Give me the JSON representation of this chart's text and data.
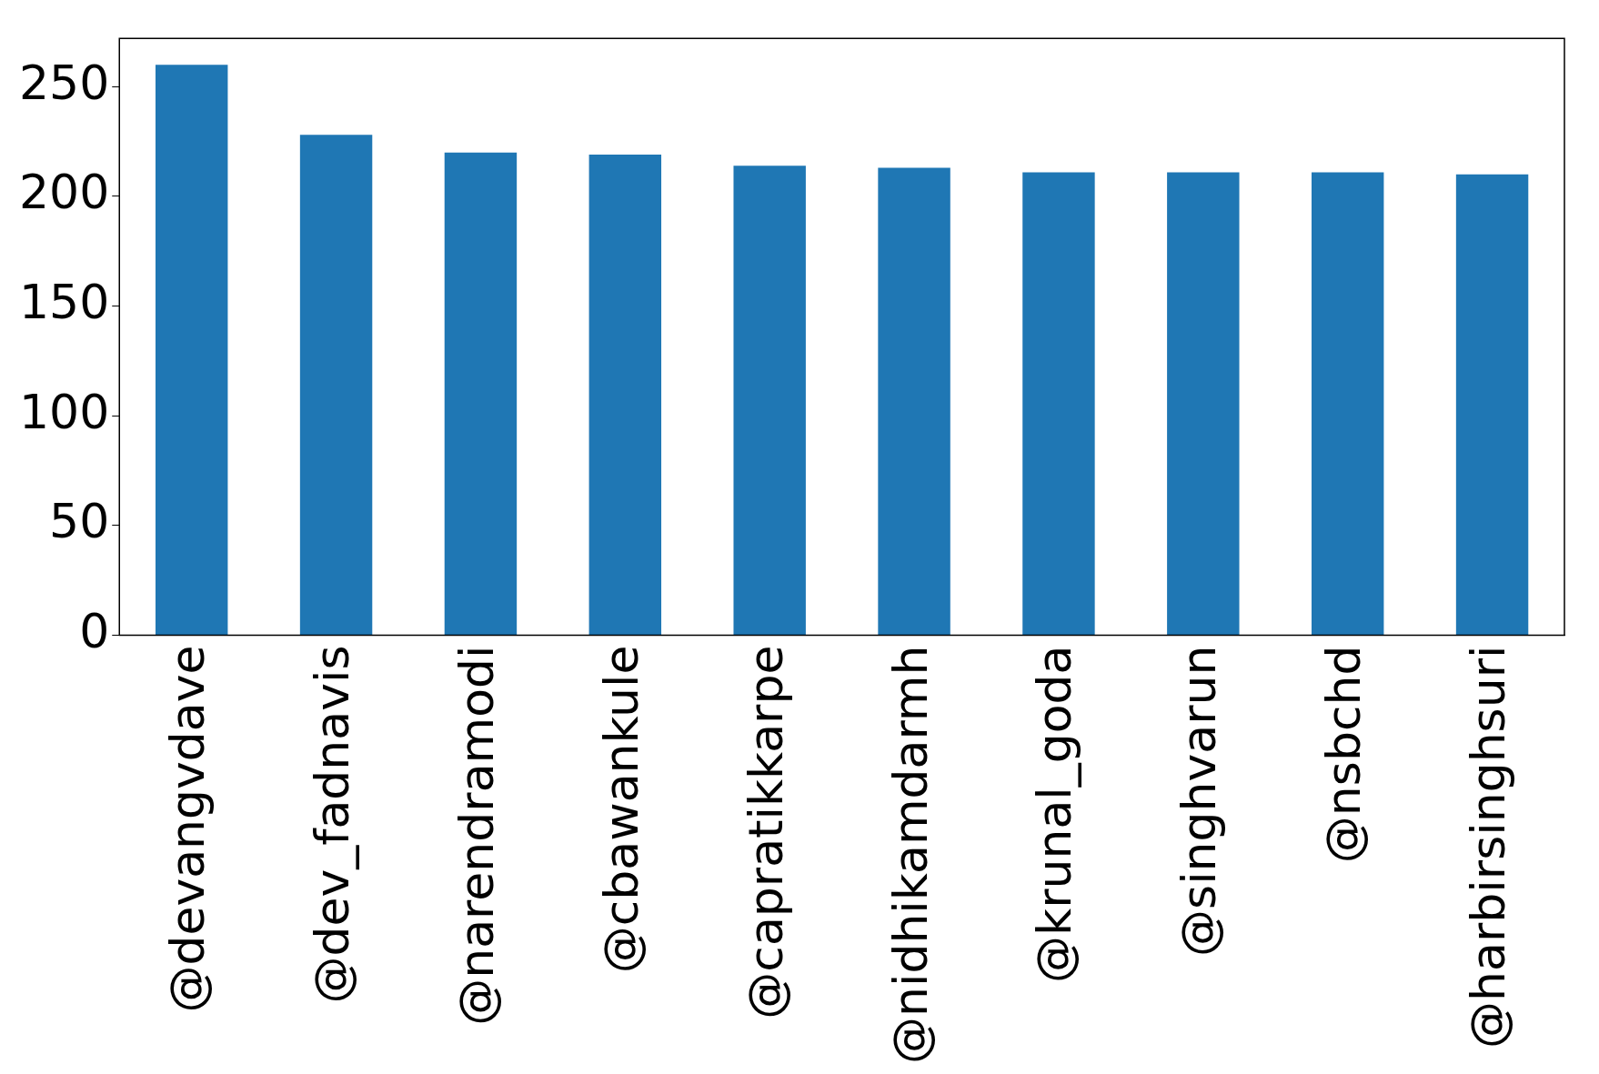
{
  "chart_data": {
    "type": "bar",
    "categories": [
      "@devangvdave",
      "@dev_fadnavis",
      "@narendramodi",
      "@cbawankule",
      "@capratikkarpe",
      "@nidhikamdarmh",
      "@krunal_goda",
      "@singhvarun",
      "@nsbchd",
      "@harbirsinghsuri"
    ],
    "values": [
      260,
      228,
      220,
      219,
      214,
      213,
      211,
      211,
      211,
      210
    ],
    "color": "#1f77b4",
    "ylim": [
      0,
      272
    ],
    "yticks": [
      0,
      50,
      100,
      150,
      200,
      250
    ],
    "grid": false,
    "legend": false
  }
}
